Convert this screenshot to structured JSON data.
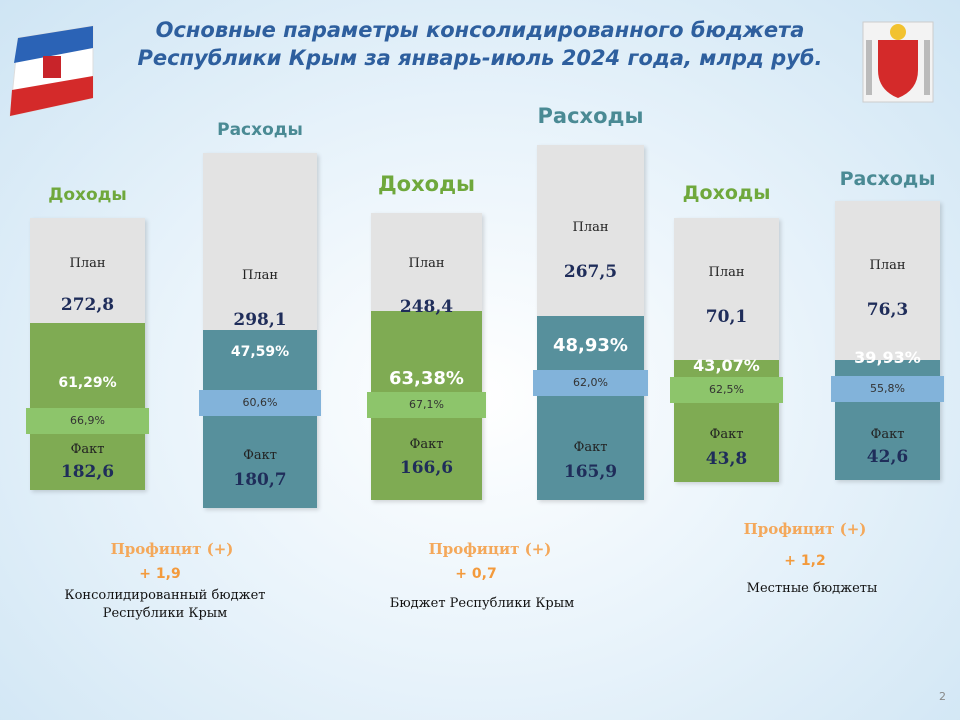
{
  "header": {
    "title_line1": "Основные параметры консолидированного бюджета",
    "title_line2": "Республики Крым за январь-июль 2024 года, млрд руб."
  },
  "groups": [
    {
      "columns": [
        {
          "heading": "Доходы",
          "plan_label": "План",
          "plan": "272,8",
          "percent": "61,29%",
          "share": "66,9%",
          "fact_label": "Факт",
          "fact": "182,6"
        },
        {
          "heading": "Расходы",
          "plan_label": "План",
          "plan": "298,1",
          "percent": "47,59%",
          "share": "60,6%",
          "fact_label": "Факт",
          "fact": "180,7"
        }
      ],
      "surplus_label": "Профицит (+)",
      "surplus": "+ 1,9",
      "caption": [
        "Консолидированный бюджет",
        "Республики Крым"
      ]
    },
    {
      "columns": [
        {
          "heading": "Доходы",
          "plan_label": "План",
          "plan": "248,4",
          "percent": "63,38%",
          "share": "67,1%",
          "fact_label": "Факт",
          "fact": "166,6"
        },
        {
          "heading": "Расходы",
          "plan_label": "План",
          "plan": "267,5",
          "percent": "48,93%",
          "share": "62,0%",
          "fact_label": "Факт",
          "fact": "165,9"
        }
      ],
      "surplus_label": "Профицит (+)",
      "surplus": "+ 0,7",
      "caption": [
        "Бюджет Республики Крым"
      ]
    },
    {
      "columns": [
        {
          "heading": "Доходы",
          "plan_label": "План",
          "plan": "70,1",
          "percent": "43,07%",
          "share": "62,5%",
          "fact_label": "Факт",
          "fact": "43,8"
        },
        {
          "heading": "Расходы",
          "plan_label": "План",
          "plan": "76,3",
          "percent": "39,93%",
          "share": "55,8%",
          "fact_label": "Факт",
          "fact": "42,6"
        }
      ],
      "surplus_label": "Профицит (+)",
      "surplus": "+ 1,2",
      "caption": [
        "Местные бюджеты"
      ]
    }
  ],
  "page_number": "2"
}
